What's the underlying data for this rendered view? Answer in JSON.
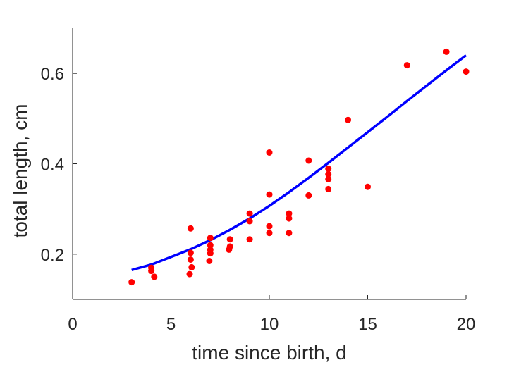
{
  "chart_data": {
    "type": "scatter",
    "title": "",
    "xlabel": "time since birth, d",
    "ylabel": "total length, cm",
    "xlim": [
      0,
      20
    ],
    "ylim": [
      0.1,
      0.7
    ],
    "x_ticks": [
      0,
      5,
      10,
      15,
      20
    ],
    "x_tick_labels": [
      "0",
      "5",
      "10",
      "15",
      "20"
    ],
    "y_ticks": [
      0.2,
      0.4,
      0.6
    ],
    "y_tick_labels": [
      "0.2",
      "0.4",
      "0.6"
    ],
    "grid": false,
    "colors": {
      "points": "#ff0000",
      "fit": "#0000ff",
      "axes": "#262626"
    },
    "series": [
      {
        "kind": "scatter",
        "points": [
          [
            3,
            0.138
          ],
          [
            4,
            0.17
          ],
          [
            4,
            0.163
          ],
          [
            4.15,
            0.15
          ],
          [
            6,
            0.257
          ],
          [
            6,
            0.203
          ],
          [
            6,
            0.188
          ],
          [
            6.05,
            0.171
          ],
          [
            5.95,
            0.156
          ],
          [
            7,
            0.236
          ],
          [
            7,
            0.22
          ],
          [
            7,
            0.21
          ],
          [
            7,
            0.202
          ],
          [
            6.95,
            0.185
          ],
          [
            8,
            0.233
          ],
          [
            8,
            0.217
          ],
          [
            7.95,
            0.21
          ],
          [
            9,
            0.29
          ],
          [
            9,
            0.273
          ],
          [
            9,
            0.233
          ],
          [
            10,
            0.425
          ],
          [
            10,
            0.332
          ],
          [
            10,
            0.262
          ],
          [
            10,
            0.247
          ],
          [
            11,
            0.29
          ],
          [
            11,
            0.279
          ],
          [
            11,
            0.247
          ],
          [
            12,
            0.407
          ],
          [
            12,
            0.33
          ],
          [
            13,
            0.389
          ],
          [
            13,
            0.377
          ],
          [
            13,
            0.366
          ],
          [
            13,
            0.344
          ],
          [
            14,
            0.497
          ],
          [
            15,
            0.349
          ],
          [
            17,
            0.618
          ],
          [
            19,
            0.648
          ],
          [
            20,
            0.604
          ]
        ]
      },
      {
        "kind": "line",
        "points": [
          [
            3,
            0.165
          ],
          [
            4,
            0.177
          ],
          [
            5,
            0.194
          ],
          [
            6,
            0.211
          ],
          [
            7,
            0.231
          ],
          [
            8,
            0.254
          ],
          [
            9,
            0.279
          ],
          [
            10,
            0.307
          ],
          [
            11,
            0.337
          ],
          [
            12,
            0.369
          ],
          [
            13,
            0.402
          ],
          [
            14,
            0.436
          ],
          [
            15,
            0.47
          ],
          [
            16,
            0.504
          ],
          [
            17,
            0.539
          ],
          [
            18,
            0.573
          ],
          [
            19,
            0.607
          ],
          [
            20,
            0.64
          ]
        ]
      }
    ]
  }
}
